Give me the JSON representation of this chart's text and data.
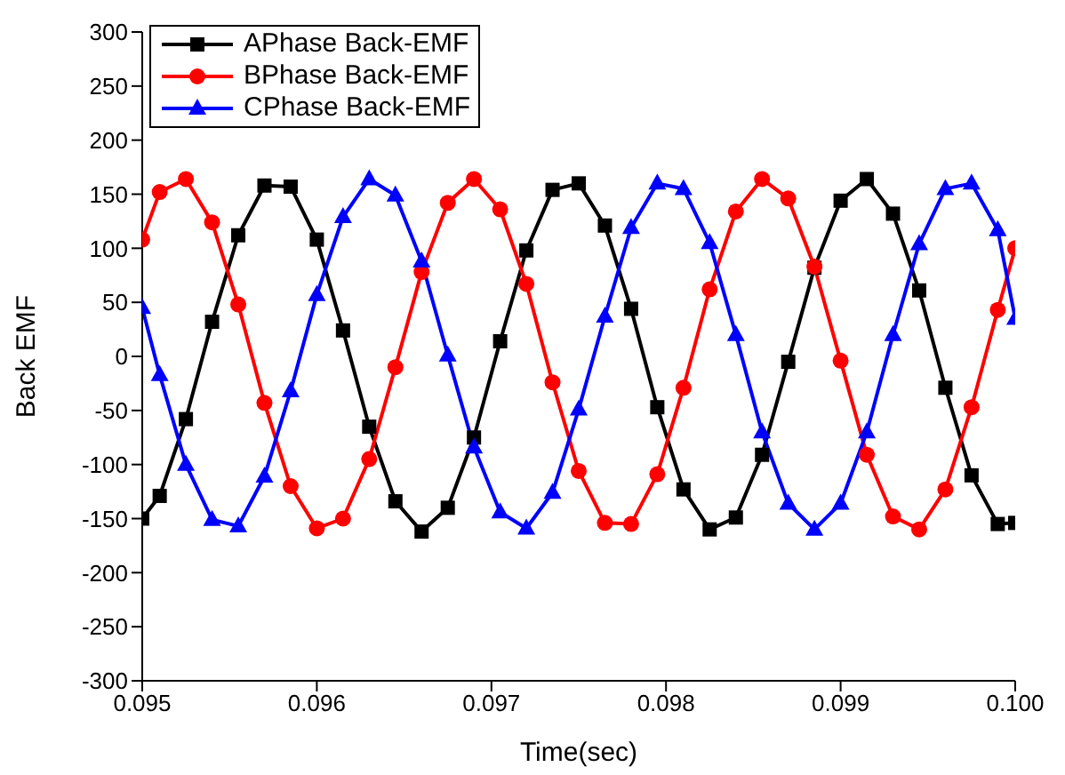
{
  "chart_data": {
    "type": "line",
    "xlabel": "Time(sec)",
    "ylabel": "Back EMF",
    "x": [
      0.095,
      0.0951,
      0.09525,
      0.0954,
      0.09555,
      0.0957,
      0.09585,
      0.096,
      0.09615,
      0.0963,
      0.09645,
      0.0966,
      0.09675,
      0.0969,
      0.09705,
      0.0972,
      0.09735,
      0.0975,
      0.09765,
      0.0978,
      0.09795,
      0.0981,
      0.09825,
      0.0984,
      0.09855,
      0.0987,
      0.09885,
      0.099,
      0.09915,
      0.0993,
      0.09945,
      0.0996,
      0.09975,
      0.0999,
      0.1
    ],
    "series": [
      {
        "name": "APhase Back-EMF",
        "color": "#000000",
        "marker": "square",
        "values": [
          -150,
          -129,
          -58,
          32,
          112,
          158,
          157,
          108,
          24,
          -65,
          -134,
          -162,
          -140,
          -75,
          14,
          98,
          154,
          160,
          121,
          44,
          -47,
          -123,
          -160,
          -149,
          -91,
          -5,
          82,
          144,
          164,
          132,
          61,
          -29,
          -110,
          -155,
          -154
        ]
      },
      {
        "name": "BPhase Back-EMF",
        "color": "#ff0000",
        "marker": "circle",
        "values": [
          108,
          152,
          164,
          124,
          48,
          -43,
          -120,
          -159,
          -150,
          -95,
          -10,
          78,
          142,
          164,
          136,
          67,
          -24,
          -106,
          -154,
          -155,
          -109,
          -29,
          62,
          134,
          164,
          146,
          83,
          -4,
          -91,
          -148,
          -160,
          -123,
          -47,
          43,
          100
        ]
      },
      {
        "name": "CPhase Back-EMF",
        "color": "#0000ff",
        "marker": "triangle",
        "values": [
          45,
          -17,
          -100,
          -151,
          -157,
          -111,
          -32,
          57,
          129,
          164,
          149,
          88,
          1,
          -84,
          -144,
          -159,
          -126,
          -49,
          37,
          119,
          160,
          155,
          105,
          20,
          -70,
          -136,
          -160,
          -136,
          -70,
          20,
          104,
          155,
          160,
          117,
          35
        ]
      }
    ],
    "xlim": [
      0.095,
      0.1
    ],
    "xticks": [
      0.095,
      0.096,
      0.097,
      0.098,
      0.099,
      {
        "value": 0.1,
        "label": "0.100"
      }
    ],
    "ylim": [
      -300,
      300
    ],
    "yticks": [
      -300,
      -250,
      -200,
      -150,
      -100,
      -50,
      0,
      50,
      100,
      150,
      200,
      250,
      300
    ],
    "grid": false,
    "legend": "top left",
    "line_style": "solid"
  }
}
